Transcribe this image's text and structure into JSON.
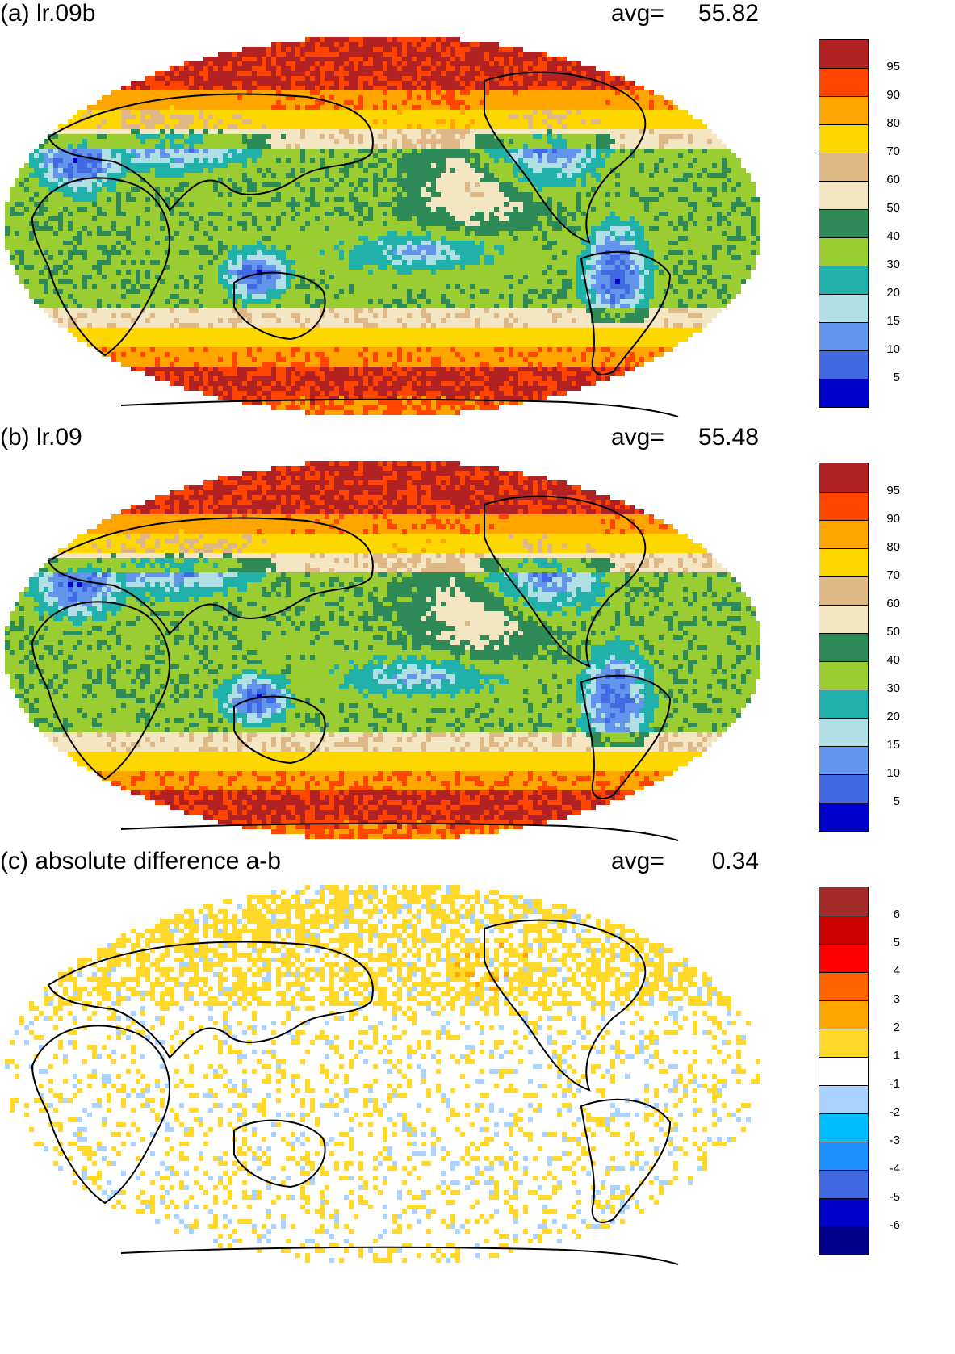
{
  "panels": [
    {
      "title": "(a) lr.09b",
      "avg_label": "avg=",
      "avg_value": "55.82",
      "scale": "main"
    },
    {
      "title": "(b) lr.09",
      "avg_label": "avg=",
      "avg_value": "55.48",
      "scale": "main"
    },
    {
      "title": "(c) absolute difference a-b",
      "avg_label": "avg=",
      "avg_value": "0.34",
      "scale": "diff"
    }
  ],
  "colorscales": {
    "main": {
      "colors_top_to_bottom": [
        "#b22222",
        "#ff4500",
        "#ffa500",
        "#ffd700",
        "#deb887",
        "#f5e6c3",
        "#2e8b57",
        "#9acd32",
        "#20b2aa",
        "#b0e0e6",
        "#6495ed",
        "#4169e1",
        "#0000cd"
      ],
      "tick_labels_top_to_bottom": [
        "95",
        "90",
        "80",
        "70",
        "60",
        "50",
        "40",
        "30",
        "20",
        "15",
        "10",
        "5"
      ]
    },
    "diff": {
      "colors_top_to_bottom": [
        "#a52a2a",
        "#cd0000",
        "#ff0000",
        "#ff6400",
        "#ffa500",
        "#ffd82a",
        "#ffffff",
        "#aad4ff",
        "#00bfff",
        "#1e90ff",
        "#4169e1",
        "#0000cd",
        "#00008b"
      ],
      "tick_labels_top_to_bottom": [
        "6",
        "5",
        "4",
        "3",
        "2",
        "1",
        "-1",
        "-2",
        "-3",
        "-4",
        "-5",
        "-6"
      ]
    }
  },
  "legend_icons": [
    "globe-map-icon",
    "coastline-icon"
  ]
}
